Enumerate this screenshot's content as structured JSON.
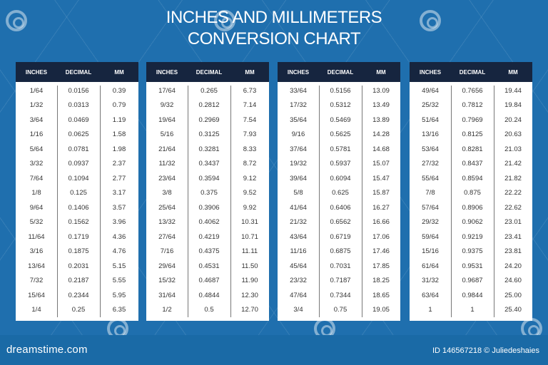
{
  "title": {
    "line1": "INCHES AND MILLIMETERS",
    "line2": "CONVERSION CHART"
  },
  "columns": [
    "INCHES",
    "DECIMAL",
    "MM"
  ],
  "tables": [
    {
      "rows": [
        [
          "1/64",
          "0.0156",
          "0.39"
        ],
        [
          "1/32",
          "0.0313",
          "0.79"
        ],
        [
          "3/64",
          "0.0469",
          "1.19"
        ],
        [
          "1/16",
          "0.0625",
          "1.58"
        ],
        [
          "5/64",
          "0.0781",
          "1.98"
        ],
        [
          "3/32",
          "0.0937",
          "2.37"
        ],
        [
          "7/64",
          "0.1094",
          "2.77"
        ],
        [
          "1/8",
          "0.125",
          "3.17"
        ],
        [
          "9/64",
          "0.1406",
          "3.57"
        ],
        [
          "5/32",
          "0.1562",
          "3.96"
        ],
        [
          "11/64",
          "0.1719",
          "4.36"
        ],
        [
          "3/16",
          "0.1875",
          "4.76"
        ],
        [
          "13/64",
          "0.2031",
          "5.15"
        ],
        [
          "7/32",
          "0.2187",
          "5.55"
        ],
        [
          "15/64",
          "0.2344",
          "5.95"
        ],
        [
          "1/4",
          "0.25",
          "6.35"
        ]
      ]
    },
    {
      "rows": [
        [
          "17/64",
          "0.265",
          "6.73"
        ],
        [
          "9/32",
          "0.2812",
          "7.14"
        ],
        [
          "19/64",
          "0.2969",
          "7.54"
        ],
        [
          "5/16",
          "0.3125",
          "7.93"
        ],
        [
          "21/64",
          "0.3281",
          "8.33"
        ],
        [
          "11/32",
          "0.3437",
          "8.72"
        ],
        [
          "23/64",
          "0.3594",
          "9.12"
        ],
        [
          "3/8",
          "0.375",
          "9.52"
        ],
        [
          "25/64",
          "0.3906",
          "9.92"
        ],
        [
          "13/32",
          "0.4062",
          "10.31"
        ],
        [
          "27/64",
          "0.4219",
          "10.71"
        ],
        [
          "7/16",
          "0.4375",
          "11.11"
        ],
        [
          "29/64",
          "0.4531",
          "11.50"
        ],
        [
          "15/32",
          "0.4687",
          "11.90"
        ],
        [
          "31/64",
          "0.4844",
          "12.30"
        ],
        [
          "1/2",
          "0.5",
          "12.70"
        ]
      ]
    },
    {
      "rows": [
        [
          "33/64",
          "0.5156",
          "13.09"
        ],
        [
          "17/32",
          "0.5312",
          "13.49"
        ],
        [
          "35/64",
          "0.5469",
          "13.89"
        ],
        [
          "9/16",
          "0.5625",
          "14.28"
        ],
        [
          "37/64",
          "0.5781",
          "14.68"
        ],
        [
          "19/32",
          "0.5937",
          "15.07"
        ],
        [
          "39/64",
          "0.6094",
          "15.47"
        ],
        [
          "5/8",
          "0.625",
          "15.87"
        ],
        [
          "41/64",
          "0.6406",
          "16.27"
        ],
        [
          "21/32",
          "0.6562",
          "16.66"
        ],
        [
          "43/64",
          "0.6719",
          "17.06"
        ],
        [
          "11/16",
          "0.6875",
          "17.46"
        ],
        [
          "45/64",
          "0.7031",
          "17.85"
        ],
        [
          "23/32",
          "0.7187",
          "18.25"
        ],
        [
          "47/64",
          "0.7344",
          "18.65"
        ],
        [
          "3/4",
          "0.75",
          "19.05"
        ]
      ]
    },
    {
      "rows": [
        [
          "49/64",
          "0.7656",
          "19.44"
        ],
        [
          "25/32",
          "0.7812",
          "19.84"
        ],
        [
          "51/64",
          "0.7969",
          "20.24"
        ],
        [
          "13/16",
          "0.8125",
          "20.63"
        ],
        [
          "53/64",
          "0.8281",
          "21.03"
        ],
        [
          "27/32",
          "0.8437",
          "21.42"
        ],
        [
          "55/64",
          "0.8594",
          "21.82"
        ],
        [
          "7/8",
          "0.875",
          "22.22"
        ],
        [
          "57/64",
          "0.8906",
          "22.62"
        ],
        [
          "29/32",
          "0.9062",
          "23.01"
        ],
        [
          "59/64",
          "0.9219",
          "23.41"
        ],
        [
          "15/16",
          "0.9375",
          "23.81"
        ],
        [
          "61/64",
          "0.9531",
          "24.20"
        ],
        [
          "31/32",
          "0.9687",
          "24.60"
        ],
        [
          "63/64",
          "0.9844",
          "25.00"
        ],
        [
          "1",
          "1",
          "25.40"
        ]
      ]
    }
  ],
  "footer": {
    "brand": "dreamstime.com",
    "credit": "ID 146567218 © Juliedeshaies"
  },
  "colors": {
    "background": "#1f6fae",
    "header": "#16253f",
    "table_bg": "#ffffff",
    "text": "#333333"
  },
  "chart_data": {
    "type": "table",
    "title": "INCHES AND MILLIMETERS CONVERSION CHART",
    "columns": [
      "INCHES",
      "DECIMAL",
      "MM"
    ],
    "rows": [
      [
        "1/64",
        "0.0156",
        "0.39"
      ],
      [
        "1/32",
        "0.0313",
        "0.79"
      ],
      [
        "3/64",
        "0.0469",
        "1.19"
      ],
      [
        "1/16",
        "0.0625",
        "1.58"
      ],
      [
        "5/64",
        "0.0781",
        "1.98"
      ],
      [
        "3/32",
        "0.0937",
        "2.37"
      ],
      [
        "7/64",
        "0.1094",
        "2.77"
      ],
      [
        "1/8",
        "0.125",
        "3.17"
      ],
      [
        "9/64",
        "0.1406",
        "3.57"
      ],
      [
        "5/32",
        "0.1562",
        "3.96"
      ],
      [
        "11/64",
        "0.1719",
        "4.36"
      ],
      [
        "3/16",
        "0.1875",
        "4.76"
      ],
      [
        "13/64",
        "0.2031",
        "5.15"
      ],
      [
        "7/32",
        "0.2187",
        "5.55"
      ],
      [
        "15/64",
        "0.2344",
        "5.95"
      ],
      [
        "1/4",
        "0.25",
        "6.35"
      ],
      [
        "17/64",
        "0.265",
        "6.73"
      ],
      [
        "9/32",
        "0.2812",
        "7.14"
      ],
      [
        "19/64",
        "0.2969",
        "7.54"
      ],
      [
        "5/16",
        "0.3125",
        "7.93"
      ],
      [
        "21/64",
        "0.3281",
        "8.33"
      ],
      [
        "11/32",
        "0.3437",
        "8.72"
      ],
      [
        "23/64",
        "0.3594",
        "9.12"
      ],
      [
        "3/8",
        "0.375",
        "9.52"
      ],
      [
        "25/64",
        "0.3906",
        "9.92"
      ],
      [
        "13/32",
        "0.4062",
        "10.31"
      ],
      [
        "27/64",
        "0.4219",
        "10.71"
      ],
      [
        "7/16",
        "0.4375",
        "11.11"
      ],
      [
        "29/64",
        "0.4531",
        "11.50"
      ],
      [
        "15/32",
        "0.4687",
        "11.90"
      ],
      [
        "31/64",
        "0.4844",
        "12.30"
      ],
      [
        "1/2",
        "0.5",
        "12.70"
      ],
      [
        "33/64",
        "0.5156",
        "13.09"
      ],
      [
        "17/32",
        "0.5312",
        "13.49"
      ],
      [
        "35/64",
        "0.5469",
        "13.89"
      ],
      [
        "9/16",
        "0.5625",
        "14.28"
      ],
      [
        "37/64",
        "0.5781",
        "14.68"
      ],
      [
        "19/32",
        "0.5937",
        "15.07"
      ],
      [
        "39/64",
        "0.6094",
        "15.47"
      ],
      [
        "5/8",
        "0.625",
        "15.87"
      ],
      [
        "41/64",
        "0.6406",
        "16.27"
      ],
      [
        "21/32",
        "0.6562",
        "16.66"
      ],
      [
        "43/64",
        "0.6719",
        "17.06"
      ],
      [
        "11/16",
        "0.6875",
        "17.46"
      ],
      [
        "45/64",
        "0.7031",
        "17.85"
      ],
      [
        "23/32",
        "0.7187",
        "18.25"
      ],
      [
        "47/64",
        "0.7344",
        "18.65"
      ],
      [
        "3/4",
        "0.75",
        "19.05"
      ],
      [
        "49/64",
        "0.7656",
        "19.44"
      ],
      [
        "25/32",
        "0.7812",
        "19.84"
      ],
      [
        "51/64",
        "0.7969",
        "20.24"
      ],
      [
        "13/16",
        "0.8125",
        "20.63"
      ],
      [
        "53/64",
        "0.8281",
        "21.03"
      ],
      [
        "27/32",
        "0.8437",
        "21.42"
      ],
      [
        "55/64",
        "0.8594",
        "21.82"
      ],
      [
        "7/8",
        "0.875",
        "22.22"
      ],
      [
        "57/64",
        "0.8906",
        "22.62"
      ],
      [
        "29/32",
        "0.9062",
        "23.01"
      ],
      [
        "59/64",
        "0.9219",
        "23.41"
      ],
      [
        "15/16",
        "0.9375",
        "23.81"
      ],
      [
        "61/64",
        "0.9531",
        "24.20"
      ],
      [
        "31/32",
        "0.9687",
        "24.60"
      ],
      [
        "63/64",
        "0.9844",
        "25.00"
      ],
      [
        "1",
        "1",
        "25.40"
      ]
    ]
  }
}
